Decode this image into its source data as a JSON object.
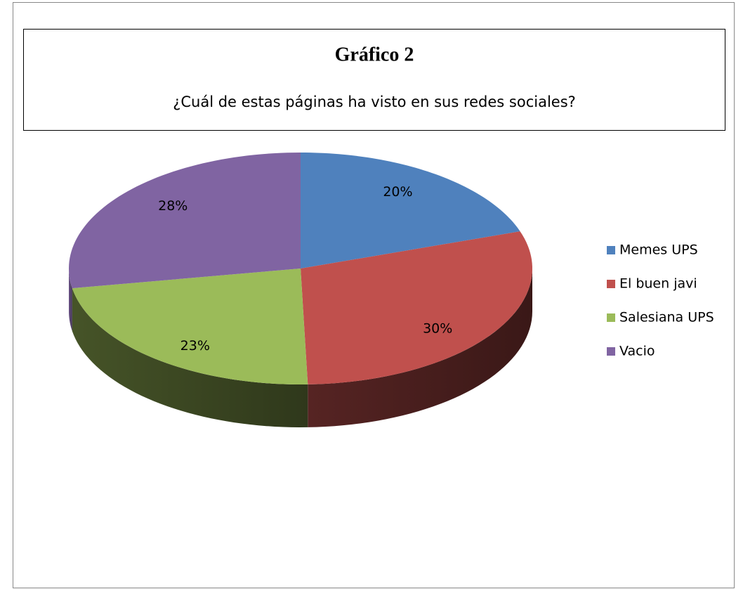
{
  "chart_data": {
    "type": "pie",
    "title": "Gráfico 2",
    "subtitle": "¿Cuál de estas páginas  ha visto en sus redes sociales?",
    "categories": [
      "Memes UPS",
      "El buen javi",
      "Salesiana UPS",
      "Vacio"
    ],
    "values": [
      20,
      30,
      23,
      28
    ],
    "value_labels": [
      "20%",
      "30%",
      "23%",
      "28%"
    ],
    "colors": [
      "#4f81bd",
      "#c0504d",
      "#9bbb59",
      "#8064a2"
    ],
    "legend": "right"
  }
}
